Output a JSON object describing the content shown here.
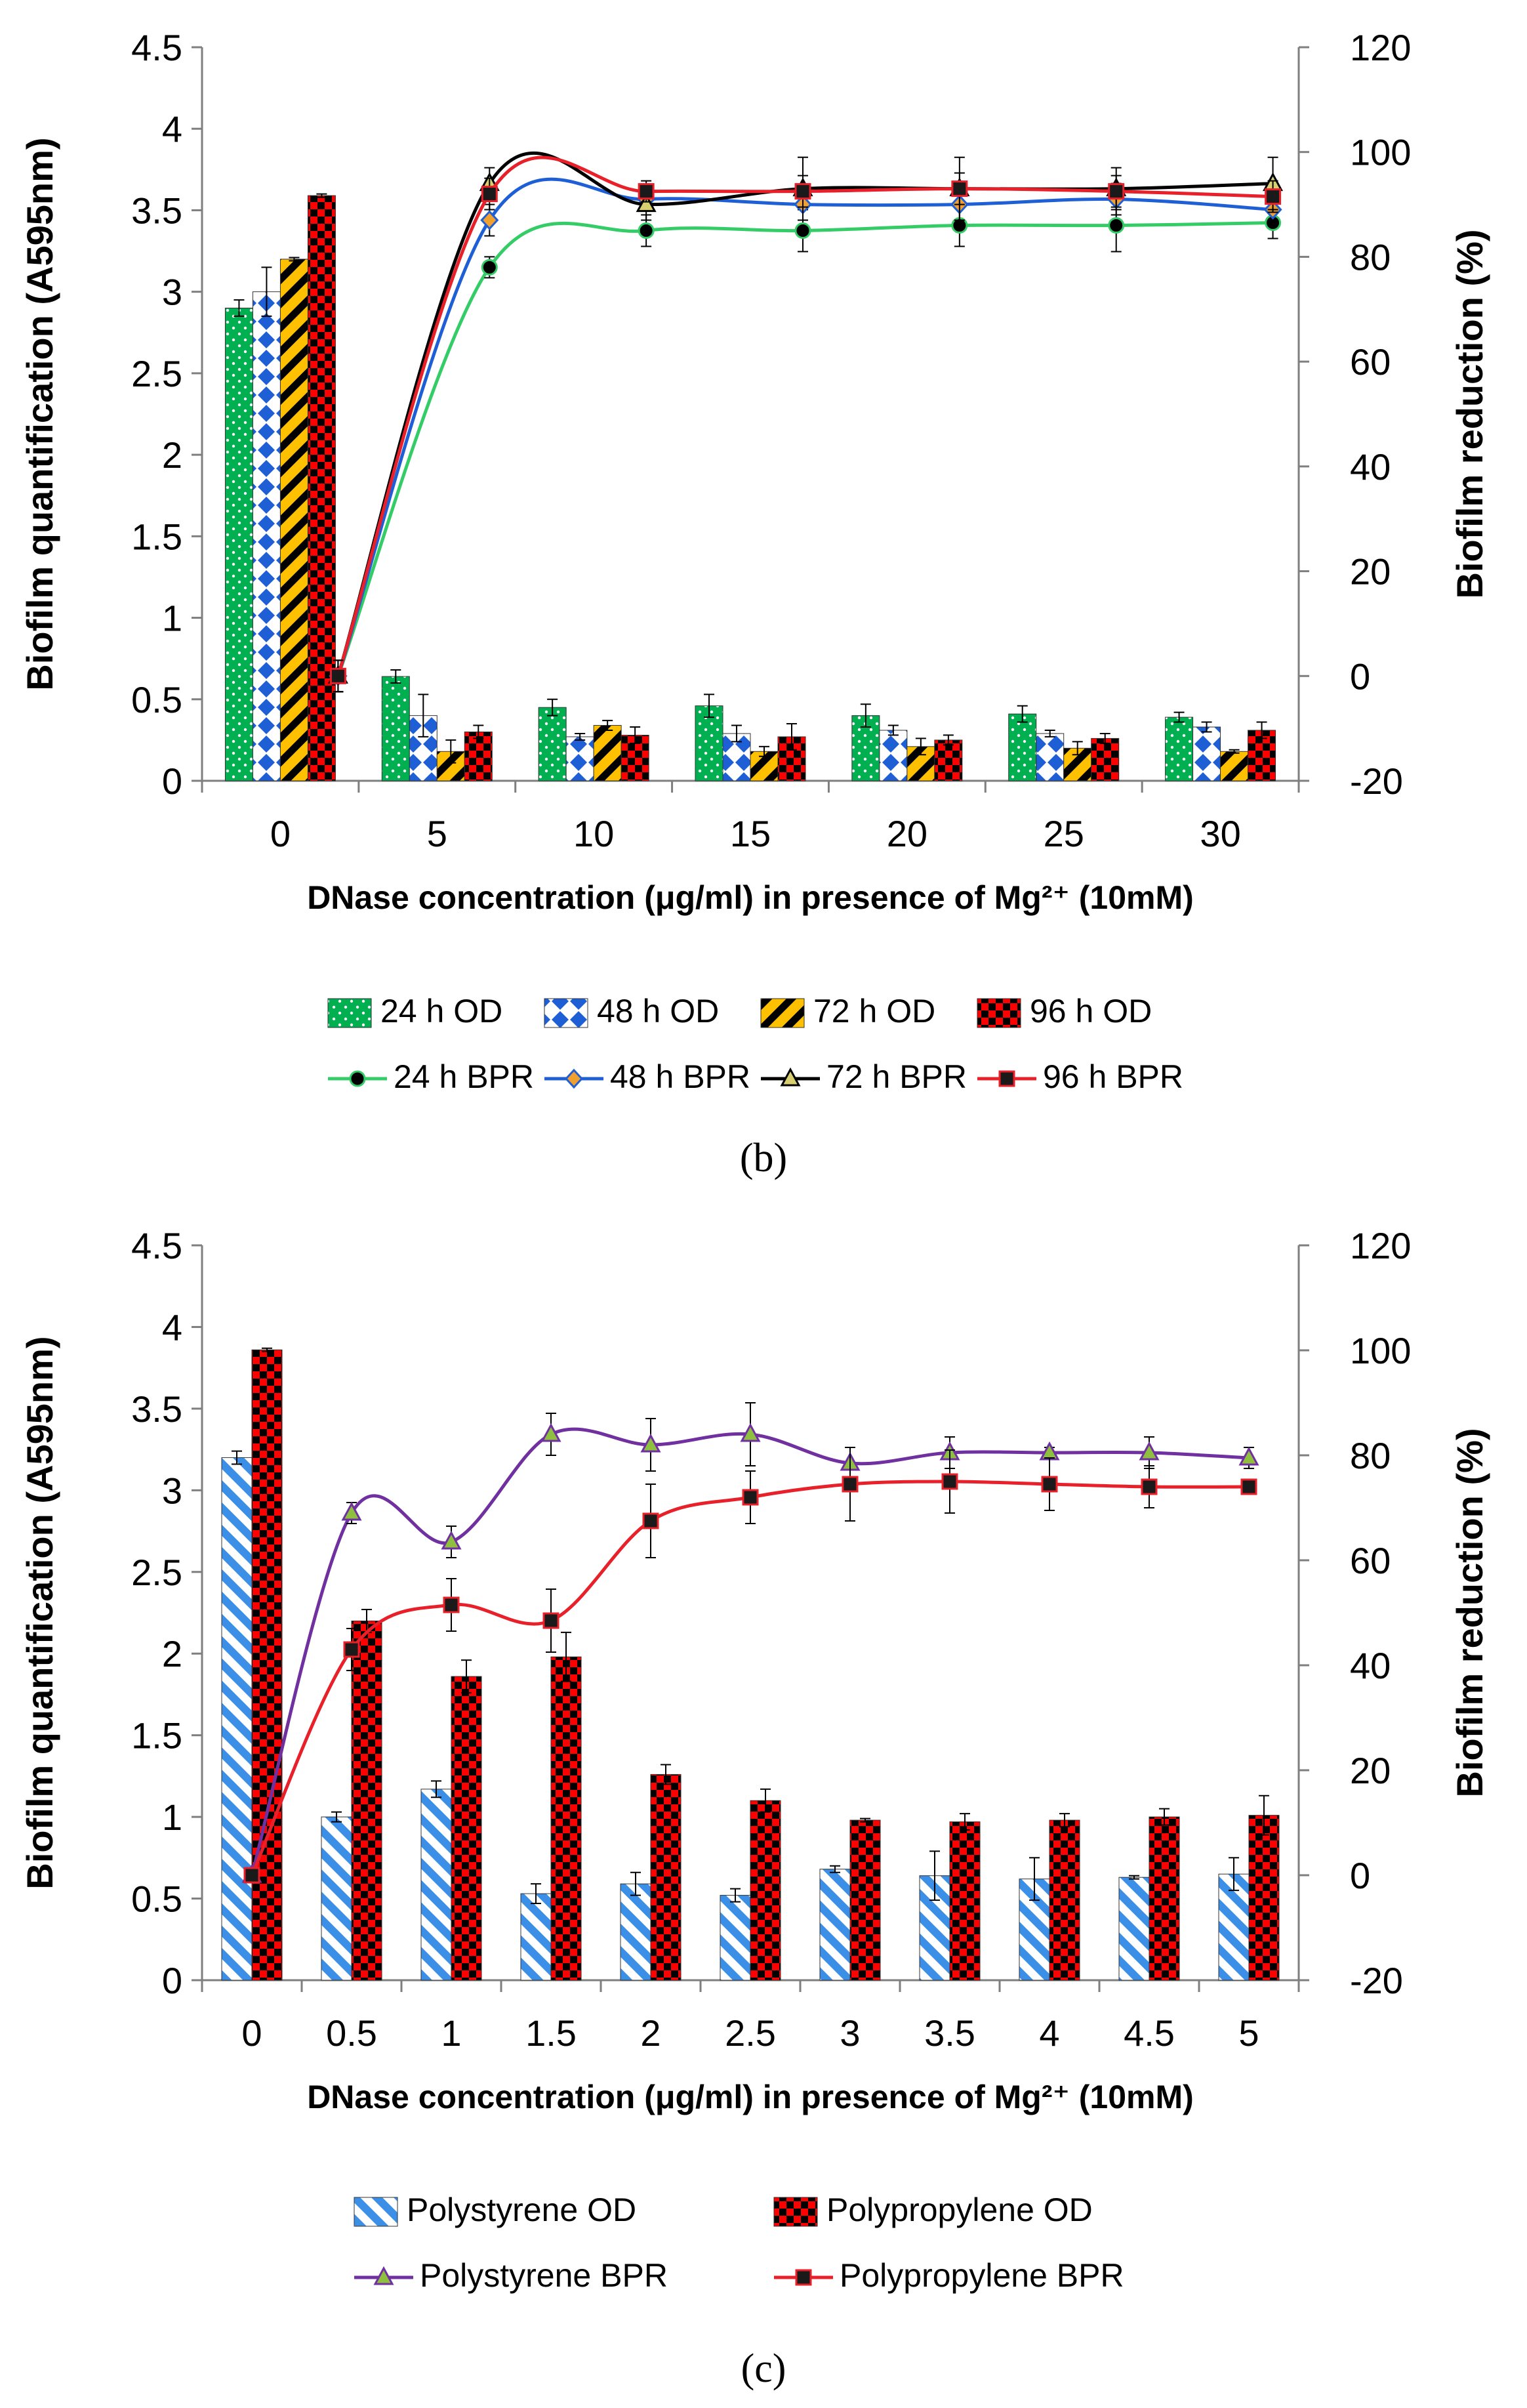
{
  "colors": {
    "green": "#00b050",
    "blue": "#1f5fd6",
    "yellow": "#ffc000",
    "red": "#ff0000",
    "black": "#000000",
    "purple": "#7030a0",
    "lightblue": "#3c8fe6",
    "greenline": "#33cc66",
    "redline": "#e8202a"
  },
  "chart_data": [
    {
      "type": "bar",
      "panel_label": "(b)",
      "title": "",
      "xlabel": "DNase concentration (μg/ml) in presence of Mg²⁺ (10mM)",
      "ylabel": "Biofilm quantification (A595nm)",
      "y2label": "Biofilm  reduction (%)",
      "ylim": [
        0,
        4.5
      ],
      "y2lim": [
        -20,
        120
      ],
      "yticks": [
        "0",
        "0.5",
        "1",
        "1.5",
        "2",
        "2.5",
        "3",
        "3.5",
        "4",
        "4.5"
      ],
      "y2ticks": [
        "-20",
        "0",
        "20",
        "40",
        "60",
        "80",
        "100",
        "120"
      ],
      "categories": [
        "0",
        "5",
        "10",
        "15",
        "20",
        "25",
        "30"
      ],
      "bar_series": [
        {
          "name": "24 h OD",
          "values": [
            2.9,
            0.64,
            0.45,
            0.46,
            0.4,
            0.41,
            0.39
          ],
          "errors": [
            0.05,
            0.04,
            0.05,
            0.07,
            0.07,
            0.05,
            0.03
          ],
          "color": "#00b050",
          "pattern": "dots"
        },
        {
          "name": "48 h OD",
          "values": [
            3.0,
            0.4,
            0.27,
            0.29,
            0.31,
            0.29,
            0.33
          ],
          "errors": [
            0.15,
            0.13,
            0.02,
            0.05,
            0.03,
            0.02,
            0.03
          ],
          "color": "#1f5fd6",
          "pattern": "diamonds"
        },
        {
          "name": "72 h OD",
          "values": [
            3.2,
            0.18,
            0.34,
            0.18,
            0.21,
            0.2,
            0.18
          ],
          "errors": [
            0.01,
            0.07,
            0.03,
            0.03,
            0.05,
            0.04,
            0.01
          ],
          "color": "#ffc000",
          "pattern": "stripes"
        },
        {
          "name": "96 h OD",
          "values": [
            3.59,
            0.3,
            0.28,
            0.27,
            0.25,
            0.26,
            0.31
          ],
          "errors": [
            0.01,
            0.04,
            0.05,
            0.08,
            0.03,
            0.03,
            0.05
          ],
          "color": "#ff0000",
          "pattern": "checker"
        }
      ],
      "line_series": [
        {
          "name": "24 h BPR",
          "values": [
            0,
            78,
            85,
            85,
            86,
            86,
            86.5
          ],
          "errors": [
            3,
            2,
            3,
            4,
            4,
            5,
            3
          ],
          "color": "#33cc66",
          "marker": "circle"
        },
        {
          "name": "48 h BPR",
          "values": [
            0,
            87,
            91,
            90,
            90,
            91,
            89
          ],
          "errors": [
            3,
            3,
            2,
            3,
            3,
            3,
            3
          ],
          "color": "#1f5fd6",
          "marker": "diamond"
        },
        {
          "name": "72 h BPR",
          "values": [
            0,
            94,
            90,
            93,
            93,
            93,
            94
          ],
          "errors": [
            3,
            3,
            3,
            6,
            6,
            4,
            5
          ],
          "color": "#000000",
          "marker": "triangle"
        },
        {
          "name": "96 h BPR",
          "values": [
            0,
            92,
            92.5,
            92.5,
            93,
            92.5,
            91.5
          ],
          "errors": [
            3,
            3,
            2,
            3,
            3,
            3,
            3
          ],
          "color": "#e8202a",
          "marker": "square"
        }
      ],
      "legend": {
        "rows": [
          [
            "24 h OD",
            "48 h OD",
            "72 h OD",
            "96 h OD"
          ],
          [
            "24 h BPR",
            "48 h BPR",
            "72 h BPR",
            "96 h BPR"
          ]
        ],
        "placement": "bottom"
      }
    },
    {
      "type": "bar",
      "panel_label": "(c)",
      "title": "",
      "xlabel": "DNase concentration (μg/ml) in presence of Mg²⁺ (10mM)",
      "ylabel": "Biofilm quantification (A595nm)",
      "y2label": "Biofilm reduction (%)",
      "ylim": [
        0,
        4.5
      ],
      "y2lim": [
        -20,
        120
      ],
      "yticks": [
        "0",
        "0.5",
        "1",
        "1.5",
        "2",
        "2.5",
        "3",
        "3.5",
        "4",
        "4.5"
      ],
      "y2ticks": [
        "-20",
        "0",
        "20",
        "40",
        "60",
        "80",
        "100",
        "120"
      ],
      "categories": [
        "0",
        "0.5",
        "1",
        "1.5",
        "2",
        "2.5",
        "3",
        "3.5",
        "4",
        "4.5",
        "5"
      ],
      "bar_series": [
        {
          "name": "Polystyrene OD",
          "values": [
            3.2,
            1.0,
            1.17,
            0.53,
            0.59,
            0.52,
            0.68,
            0.64,
            0.62,
            0.63,
            0.65
          ],
          "errors": [
            0.04,
            0.03,
            0.05,
            0.06,
            0.07,
            0.04,
            0.02,
            0.15,
            0.13,
            0.01,
            0.1
          ],
          "color": "#3c8fe6",
          "pattern": "stripes"
        },
        {
          "name": "Polypropylene OD",
          "values": [
            3.86,
            2.2,
            1.86,
            1.98,
            1.26,
            1.1,
            0.98,
            0.97,
            0.98,
            1.0,
            1.01
          ],
          "errors": [
            0.01,
            0.07,
            0.1,
            0.15,
            0.06,
            0.07,
            0.01,
            0.05,
            0.04,
            0.05,
            0.12
          ],
          "color": "#ff0000",
          "pattern": "checker"
        }
      ],
      "line_series": [
        {
          "name": "Polystyrene BPR",
          "values": [
            0,
            69,
            63.5,
            84,
            82,
            84,
            78.5,
            80.5,
            80.5,
            80.5,
            79.5
          ],
          "errors": [
            0,
            2,
            3,
            4,
            5,
            6,
            3,
            3,
            1,
            3,
            2
          ],
          "color": "#7030a0",
          "marker": "triangle"
        },
        {
          "name": "Polypropylene BPR",
          "values": [
            0,
            43,
            51.5,
            48.5,
            67.5,
            72,
            74.5,
            75,
            74.5,
            74,
            74
          ],
          "errors": [
            0,
            4,
            5,
            6,
            7,
            5,
            7,
            6,
            5,
            4,
            1
          ],
          "color": "#e8202a",
          "marker": "square"
        }
      ],
      "legend": {
        "rows": [
          [
            "Polystyrene OD",
            "Polypropylene OD"
          ],
          [
            "Polystyrene BPR",
            "Polypropylene BPR"
          ]
        ],
        "placement": "bottom"
      }
    }
  ]
}
